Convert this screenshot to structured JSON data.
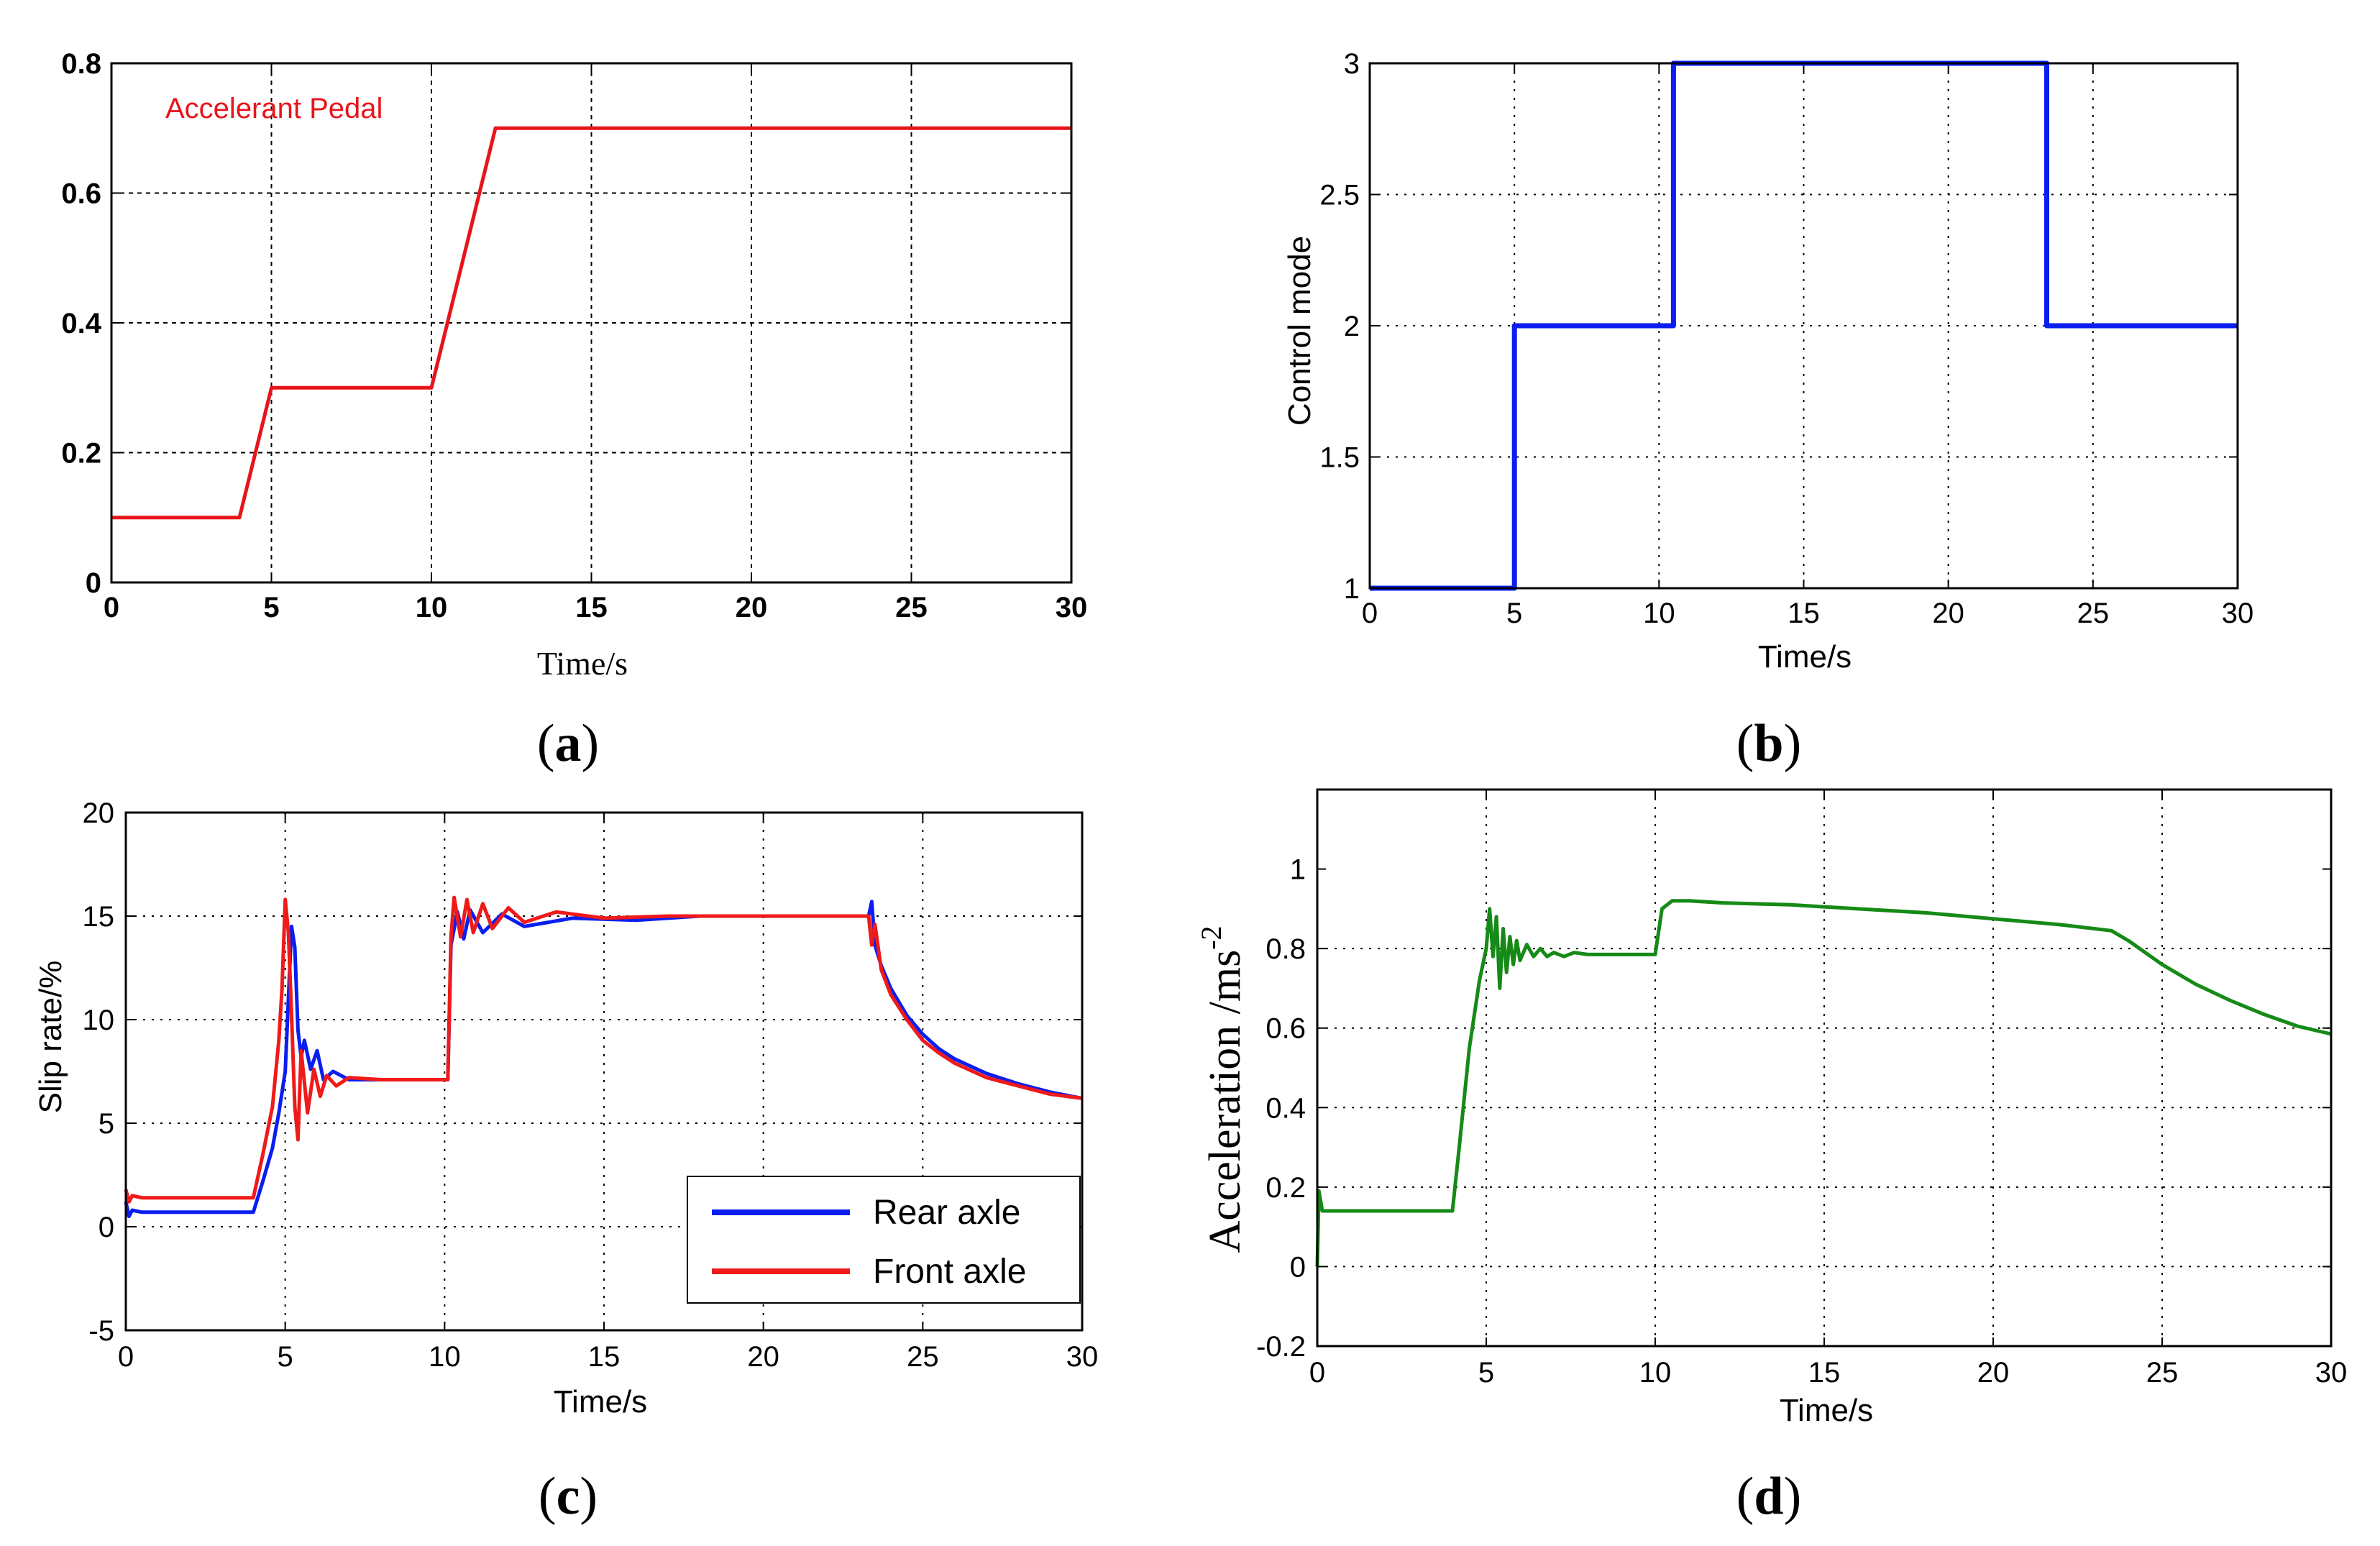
{
  "chart_data": [
    {
      "type": "line",
      "panel": "a",
      "caption": "a",
      "xlabel": "Time/s",
      "ylabel": "",
      "xlim": [
        0,
        30
      ],
      "ylim": [
        0,
        0.8
      ],
      "xticks": [
        0,
        5,
        10,
        15,
        20,
        25,
        30
      ],
      "yticks": [
        0,
        0.2,
        0.4,
        0.6,
        0.8
      ],
      "xtick_labels": [
        "0",
        "5",
        "10",
        "15",
        "20",
        "25",
        "30"
      ],
      "ytick_labels": [
        "0",
        "0.2",
        "0.4",
        "0.6",
        "0.8"
      ],
      "grid": true,
      "annotation": "Accelerant Pedal",
      "series": [
        {
          "name": "Accelerant Pedal",
          "color": "#e8141b",
          "x": [
            0,
            4,
            5,
            10,
            12,
            30
          ],
          "y": [
            0.1,
            0.1,
            0.3,
            0.3,
            0.7,
            0.7
          ]
        }
      ]
    },
    {
      "type": "line",
      "panel": "b",
      "caption": "b",
      "xlabel": "Time/s",
      "ylabel": "Control mode",
      "xlim": [
        0,
        30
      ],
      "ylim": [
        1,
        3
      ],
      "xticks": [
        0,
        5,
        10,
        15,
        20,
        25,
        30
      ],
      "yticks": [
        1,
        1.5,
        2,
        2.5,
        3
      ],
      "xtick_labels": [
        "0",
        "5",
        "10",
        "15",
        "20",
        "25",
        "30"
      ],
      "ytick_labels": [
        "1",
        "1.5",
        "2",
        "2.5",
        "3"
      ],
      "grid": true,
      "series": [
        {
          "name": "Control mode",
          "color": "#0a1ef0",
          "x": [
            0,
            5,
            5,
            10.5,
            10.5,
            23.4,
            23.4,
            30
          ],
          "y": [
            1,
            1,
            2,
            2,
            3,
            3,
            2,
            2
          ]
        }
      ]
    },
    {
      "type": "line",
      "panel": "c",
      "caption": "c",
      "xlabel": "Time/s",
      "ylabel": "Slip rate/%",
      "xlim": [
        0,
        30
      ],
      "ylim": [
        -5,
        20
      ],
      "xticks": [
        0,
        5,
        10,
        15,
        20,
        25,
        30
      ],
      "yticks": [
        -5,
        0,
        5,
        10,
        15,
        20
      ],
      "xtick_labels": [
        "0",
        "5",
        "10",
        "15",
        "20",
        "25",
        "30"
      ],
      "ytick_labels": [
        "-5",
        "0",
        "5",
        "10",
        "15",
        "20"
      ],
      "grid": true,
      "legend": "bottom-right",
      "series": [
        {
          "name": "Rear axle",
          "color": "#0a1ef0",
          "x": [
            0,
            0.1,
            0.2,
            0.5,
            4,
            4.3,
            4.6,
            4.8,
            5.0,
            5.1,
            5.2,
            5.3,
            5.4,
            5.5,
            5.6,
            5.8,
            6.0,
            6.2,
            6.5,
            7,
            8,
            9,
            10.1,
            10.2,
            10.4,
            10.6,
            10.8,
            11.2,
            11.8,
            12.5,
            14,
            16,
            18,
            20,
            23.3,
            23.4,
            23.5,
            23.7,
            24,
            24.5,
            25,
            25.5,
            26,
            27,
            28,
            29,
            30
          ],
          "y": [
            1.2,
            0.5,
            0.8,
            0.7,
            0.7,
            2.2,
            3.8,
            5.5,
            7.5,
            11,
            14.5,
            13.5,
            9.5,
            8.2,
            9.0,
            7.6,
            8.5,
            7.1,
            7.5,
            7.1,
            7.1,
            7.1,
            7.1,
            13.6,
            15.2,
            13.9,
            15.3,
            14.2,
            15.1,
            14.5,
            14.9,
            14.8,
            15.0,
            15.0,
            15.0,
            15.7,
            13.6,
            12.6,
            11.5,
            10.2,
            9.3,
            8.6,
            8.1,
            7.4,
            6.9,
            6.5,
            6.2
          ]
        },
        {
          "name": "Front axle",
          "color": "#ef1a1a",
          "x": [
            0,
            0.1,
            0.2,
            0.5,
            4,
            4.3,
            4.6,
            4.8,
            4.9,
            5.0,
            5.1,
            5.2,
            5.3,
            5.4,
            5.5,
            5.7,
            5.9,
            6.1,
            6.3,
            6.6,
            7,
            8,
            9,
            10.1,
            10.2,
            10.3,
            10.5,
            10.7,
            10.9,
            11.2,
            11.5,
            12,
            12.5,
            13.5,
            15,
            17,
            20,
            23.3,
            23.4,
            23.5,
            23.7,
            24,
            24.5,
            25,
            25.5,
            26,
            27,
            28,
            29,
            30
          ],
          "y": [
            1.8,
            1.2,
            1.5,
            1.4,
            1.4,
            3.5,
            5.8,
            9.0,
            11.5,
            15.8,
            14.2,
            10.2,
            5.8,
            4.2,
            8.5,
            5.5,
            7.6,
            6.3,
            7.3,
            6.8,
            7.2,
            7.1,
            7.1,
            7.1,
            14.0,
            15.9,
            14.0,
            15.8,
            14.2,
            15.6,
            14.4,
            15.4,
            14.7,
            15.2,
            14.9,
            15.0,
            15.0,
            15.0,
            13.6,
            14.6,
            12.4,
            11.2,
            10.0,
            9.0,
            8.4,
            7.9,
            7.2,
            6.8,
            6.4,
            6.2
          ]
        }
      ]
    },
    {
      "type": "line",
      "panel": "d",
      "caption": "d",
      "xlabel": "Time/s",
      "ylabel": "Acceleration /ms",
      "ylabel_exponent": "-2",
      "xlim": [
        0,
        30
      ],
      "ylim": [
        -0.2,
        1.2
      ],
      "xticks": [
        0,
        5,
        10,
        15,
        20,
        25,
        30
      ],
      "yticks": [
        -0.2,
        0,
        0.2,
        0.4,
        0.6,
        0.8,
        1
      ],
      "xtick_labels": [
        "0",
        "5",
        "10",
        "15",
        "20",
        "25",
        "30"
      ],
      "ytick_labels": [
        "-0.2",
        "0",
        "0.2",
        "0.4",
        "0.6",
        "0.8",
        "1"
      ],
      "grid": true,
      "series": [
        {
          "name": "Acceleration",
          "color": "#168a16",
          "x": [
            0,
            0.05,
            0.15,
            0.3,
            4,
            4.2,
            4.5,
            4.8,
            5.0,
            5.1,
            5.2,
            5.3,
            5.4,
            5.5,
            5.6,
            5.7,
            5.8,
            5.9,
            6.0,
            6.2,
            6.4,
            6.6,
            6.8,
            7.0,
            7.3,
            7.6,
            8,
            9,
            10.0,
            10.2,
            10.5,
            11,
            12,
            14,
            16,
            18,
            20,
            22,
            23.5,
            24,
            25,
            26,
            27,
            28,
            29,
            30
          ],
          "y": [
            0.0,
            0.19,
            0.14,
            0.14,
            0.14,
            0.3,
            0.55,
            0.72,
            0.8,
            0.9,
            0.78,
            0.88,
            0.7,
            0.85,
            0.74,
            0.83,
            0.76,
            0.82,
            0.77,
            0.81,
            0.78,
            0.8,
            0.78,
            0.79,
            0.78,
            0.79,
            0.785,
            0.785,
            0.785,
            0.9,
            0.92,
            0.92,
            0.915,
            0.91,
            0.9,
            0.89,
            0.875,
            0.86,
            0.845,
            0.82,
            0.76,
            0.71,
            0.67,
            0.635,
            0.605,
            0.585
          ]
        }
      ]
    }
  ]
}
